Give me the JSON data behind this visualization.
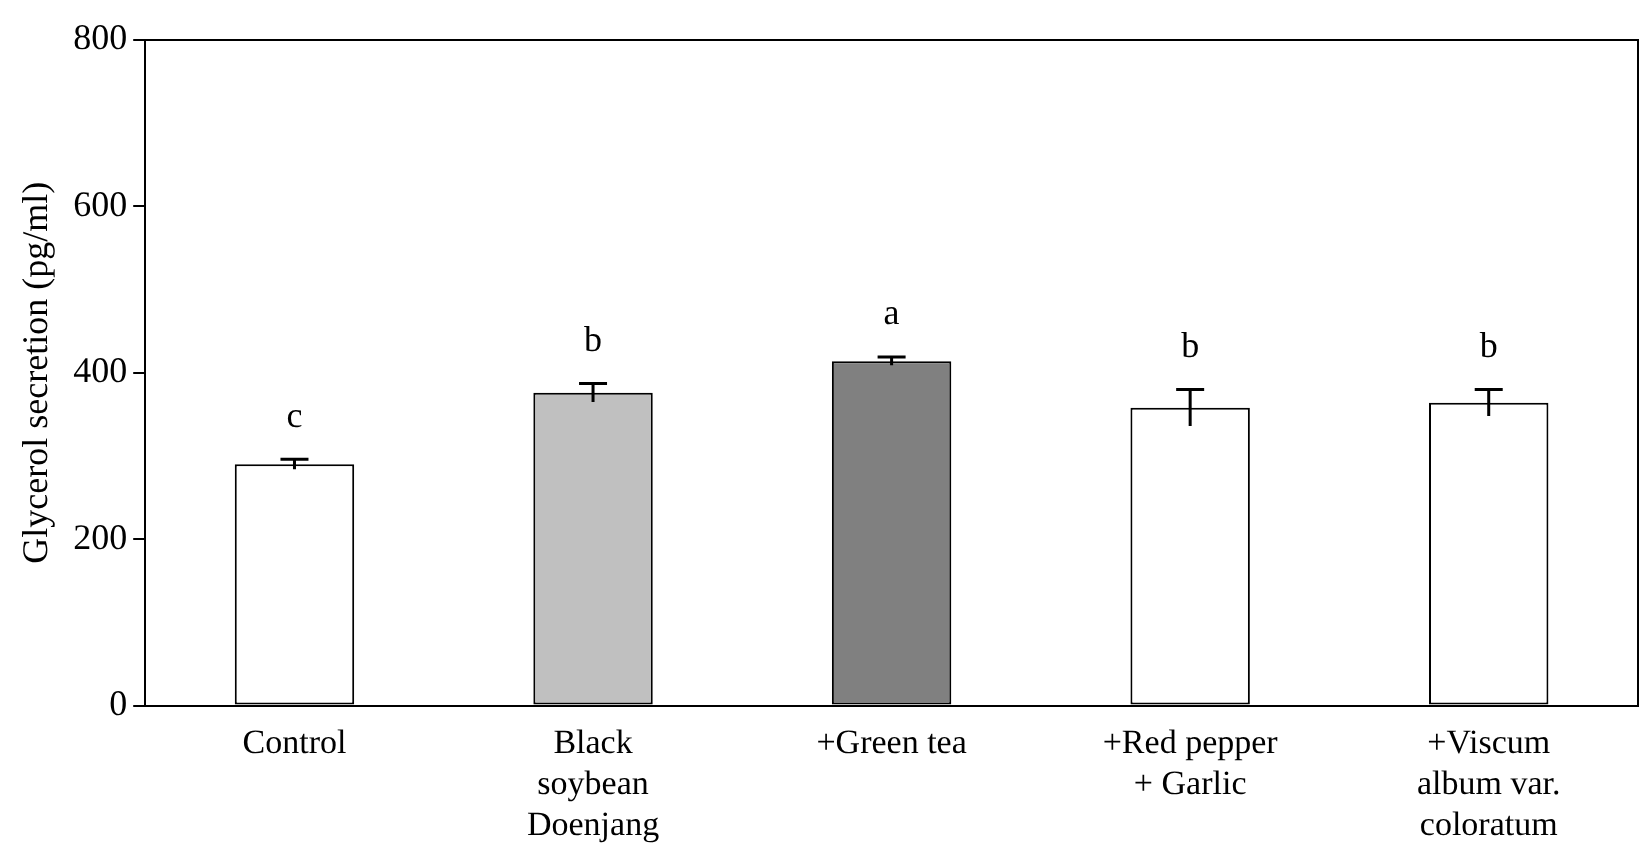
{
  "chart_data": {
    "type": "bar",
    "ylabel": "Glycerol secretion (pg/ml)",
    "categories": [
      "Control",
      "Black\nsoybean\nDoenjang",
      "+Green tea",
      "+Red pepper\n+ Garlic",
      "+Viscum\nalbum var.\ncoloratum"
    ],
    "values": [
      290,
      376,
      414,
      358,
      364
    ],
    "colors": [
      "#ffffff",
      "#c0c0c0",
      "#808080",
      "#ffffff",
      "#ffffff"
    ],
    "errors": [
      6,
      11,
      5,
      22,
      16
    ],
    "ylim": [
      0,
      800
    ],
    "yticks": [
      0,
      200,
      400,
      600,
      800
    ],
    "grid": false,
    "legend": false,
    "annotations": [
      "c",
      "b",
      "a",
      "b",
      "b"
    ]
  }
}
